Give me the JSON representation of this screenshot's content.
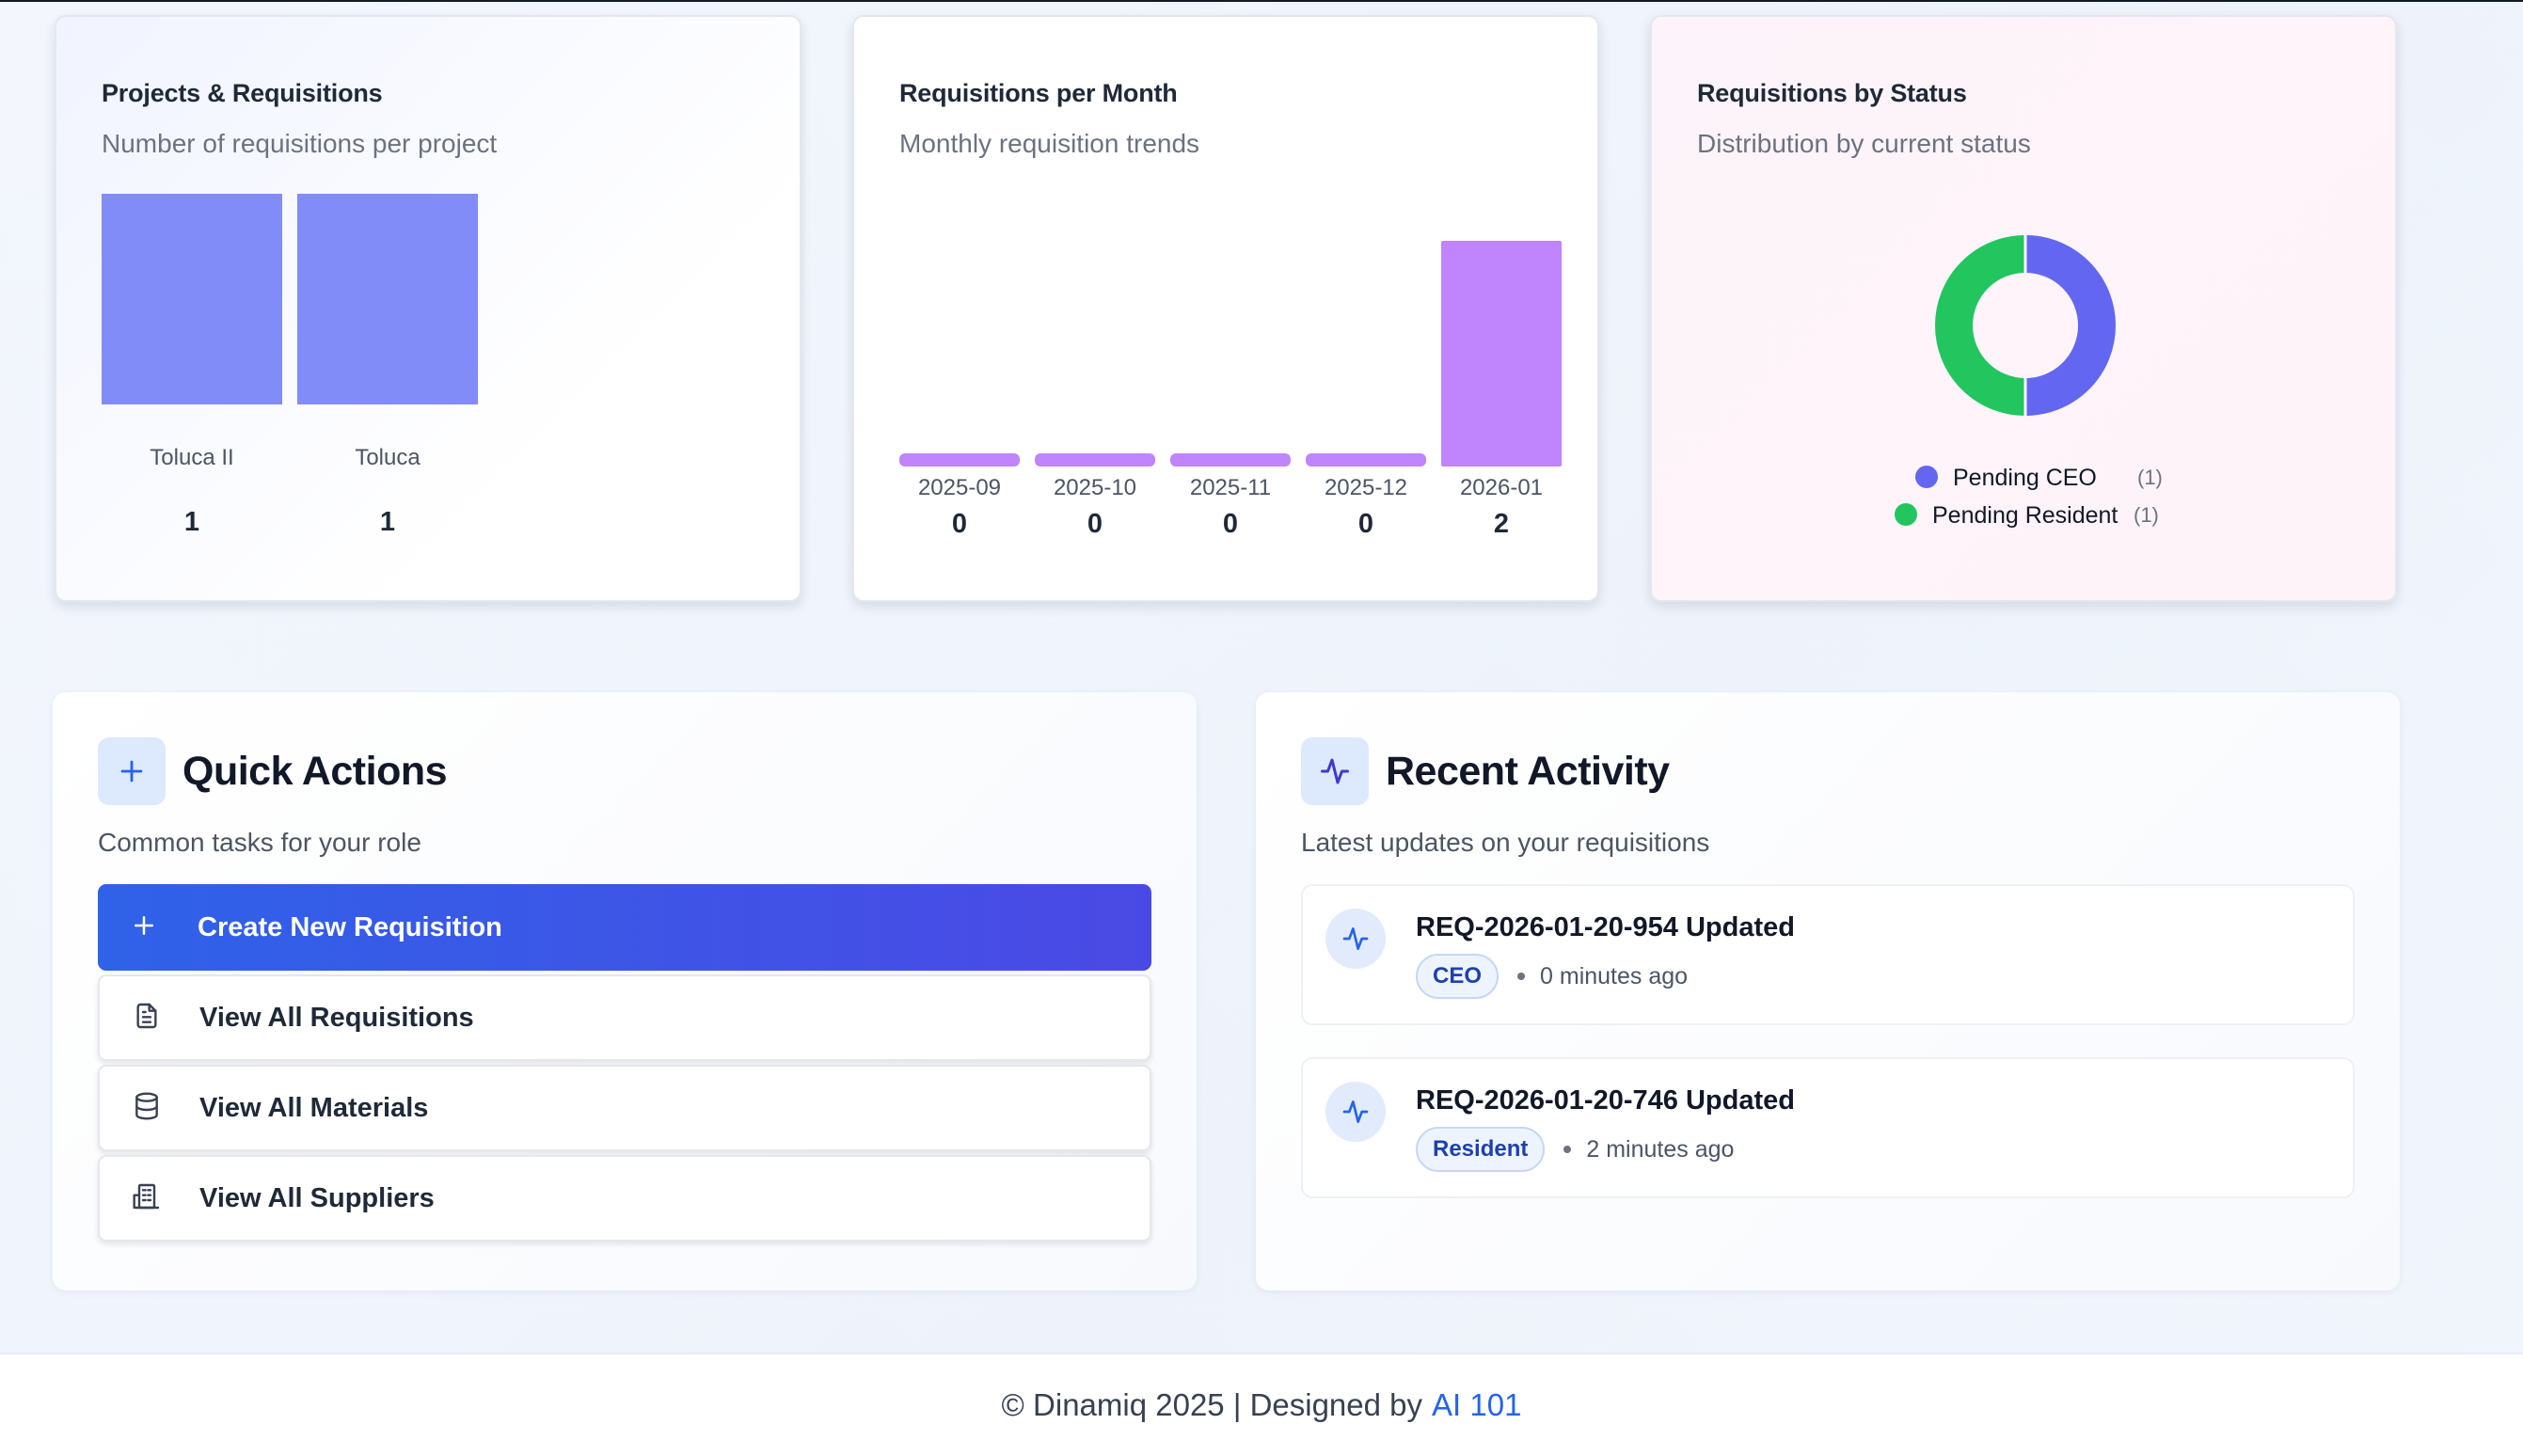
{
  "charts": {
    "projects": {
      "title": "Projects & Requisitions",
      "subtitle": "Number of requisitions per project"
    },
    "monthly": {
      "title": "Requisitions per Month",
      "subtitle": "Monthly requisition trends"
    },
    "status": {
      "title": "Requisitions by Status",
      "subtitle": "Distribution by current status"
    }
  },
  "chart_data": [
    {
      "type": "bar",
      "title": "Projects & Requisitions",
      "subtitle": "Number of requisitions per project",
      "categories": [
        "Toluca II",
        "Toluca"
      ],
      "values": [
        1,
        1
      ],
      "color": "#818cf8"
    },
    {
      "type": "bar",
      "title": "Requisitions per Month",
      "subtitle": "Monthly requisition trends",
      "categories": [
        "2025-09",
        "2025-10",
        "2025-11",
        "2025-12",
        "2026-01"
      ],
      "values": [
        0,
        0,
        0,
        0,
        2
      ],
      "color": "#c084fc"
    },
    {
      "type": "pie",
      "title": "Requisitions by Status",
      "subtitle": "Distribution by current status",
      "labels": [
        "Pending CEO",
        "Pending Resident"
      ],
      "values": [
        1,
        1
      ],
      "colors": [
        "#6366f1",
        "#22c55e"
      ],
      "legend": "bottom"
    }
  ],
  "quick_actions": {
    "title": "Quick Actions",
    "subtitle": "Common tasks for your role",
    "icon": "plus-icon",
    "items": [
      {
        "label": "Create New Requisition",
        "icon": "plus-icon"
      },
      {
        "label": "View All Requisitions",
        "icon": "document-icon"
      },
      {
        "label": "View All Materials",
        "icon": "database-icon"
      },
      {
        "label": "View All Suppliers",
        "icon": "building-icon"
      }
    ]
  },
  "recent_activity": {
    "title": "Recent Activity",
    "subtitle": "Latest updates on your requisitions",
    "icon": "activity-icon",
    "items": [
      {
        "title": "REQ-2026-01-20-954 Updated",
        "role": "CEO",
        "time": "0 minutes ago"
      },
      {
        "title": "REQ-2026-01-20-746 Updated",
        "role": "Resident",
        "time": "2 minutes ago"
      }
    ]
  },
  "footer": {
    "text": "© Dinamiq 2025 | Designed by",
    "link": "AI 101",
    "link_color": "#2563eb"
  }
}
